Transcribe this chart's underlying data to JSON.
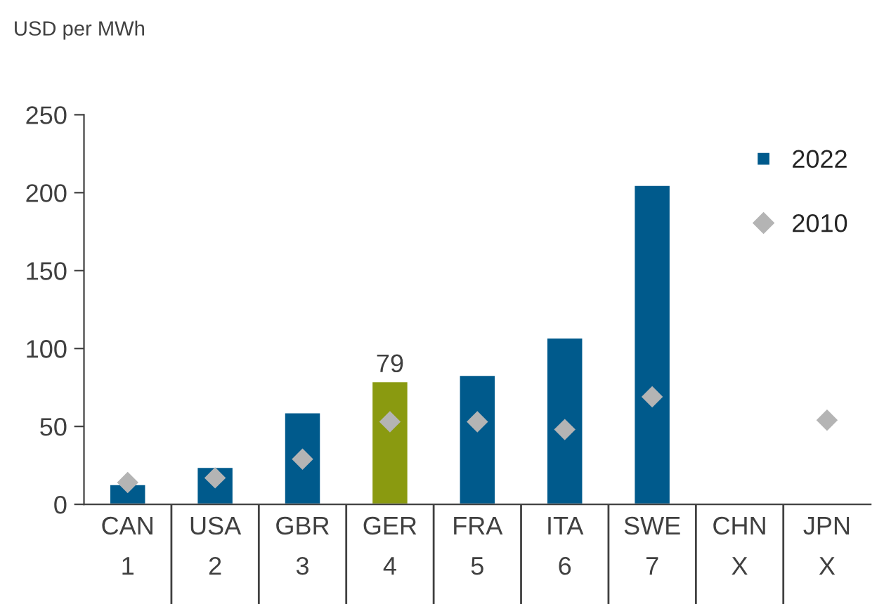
{
  "chart_data": {
    "type": "bar",
    "ylabel": "USD per MWh",
    "categories": [
      "CAN\n1",
      "USA\n2",
      "GBR\n3",
      "GER\n4",
      "FRA\n5",
      "ITA\n6",
      "SWE\n7",
      "CHN\nX",
      "JPN\nX"
    ],
    "series": [
      {
        "name": "2022",
        "color": "#005a8c",
        "colors": [
          "#005a8c",
          "#005a8c",
          "#005a8c",
          "#8a9a10",
          "#005a8c",
          "#005a8c",
          "#005a8c",
          "#005a8c",
          "#005a8c"
        ],
        "values": [
          13,
          24,
          59,
          79,
          83,
          107,
          205,
          null,
          null
        ],
        "value_labels": [
          null,
          null,
          null,
          "79",
          null,
          null,
          null,
          null,
          null
        ]
      },
      {
        "name": "2010",
        "type": "scatter",
        "color": "#b4b4b4",
        "marker": "diamond",
        "values": [
          14,
          17,
          29,
          53,
          53,
          48,
          69,
          null,
          54
        ]
      }
    ],
    "ylim": [
      0,
      250
    ],
    "yticks": [
      0,
      50,
      100,
      150,
      200,
      250
    ],
    "grid": false,
    "legend": "top right"
  }
}
